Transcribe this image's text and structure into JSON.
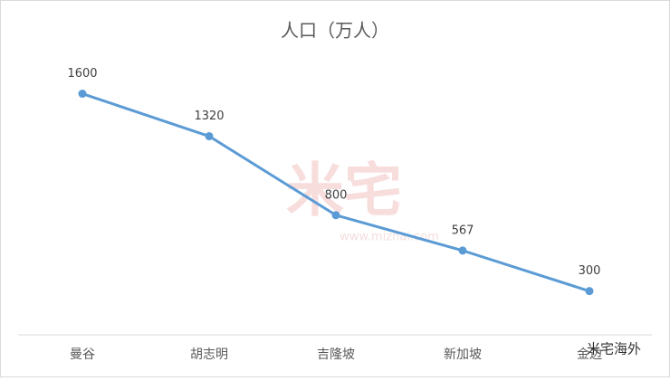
{
  "chart_data": {
    "type": "line",
    "title": "人口（万人）",
    "categories": [
      "曼谷",
      "胡志明",
      "吉隆坡",
      "新加坡",
      "金边"
    ],
    "series": [
      {
        "name": "人口（万人）",
        "color": "#5b9bd5",
        "values": [
          1600,
          1320,
          800,
          567,
          300
        ]
      }
    ],
    "ylim": [
      0,
      1800
    ],
    "data_labels": true
  },
  "watermark": {
    "text": "米宅",
    "url": "www.mizhai.com"
  },
  "footer_logo": "米宅海外"
}
